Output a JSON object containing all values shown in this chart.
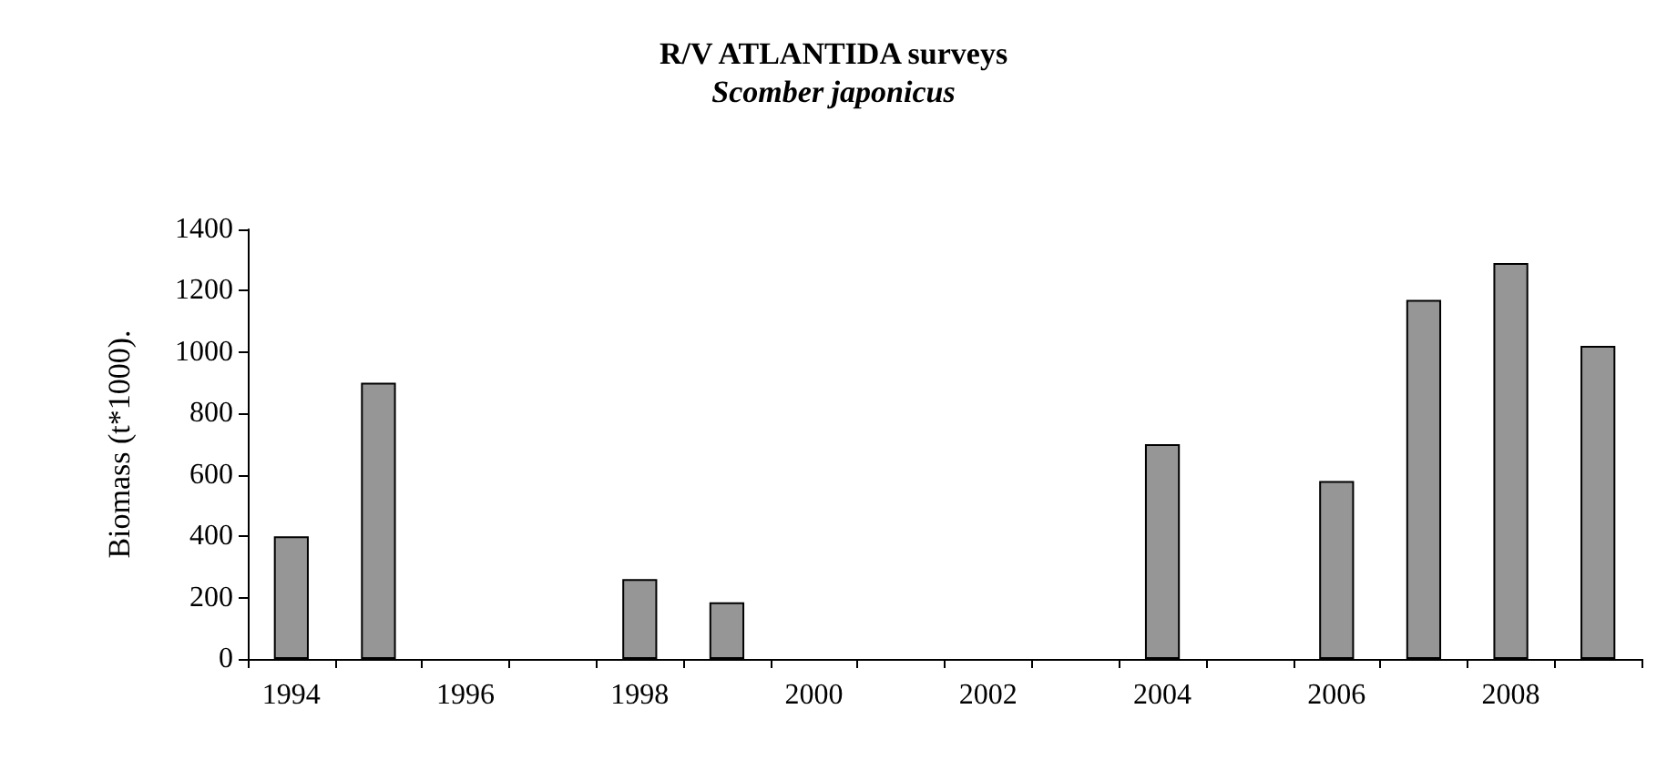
{
  "chart_data": {
    "type": "bar",
    "title": "R/V ATLANTIDA surveys",
    "subtitle": "Scomber japonicus",
    "ylabel": "Biomass (t*1000).",
    "categories": [
      "1994",
      null,
      "1996",
      null,
      "1998",
      null,
      "2000",
      null,
      "2002",
      null,
      "2004",
      null,
      "2006",
      null,
      "2008",
      null
    ],
    "values": [
      400,
      900,
      null,
      null,
      260,
      185,
      null,
      null,
      null,
      null,
      700,
      null,
      580,
      1170,
      1290,
      1020
    ],
    "color": "#969696",
    "ylim": [
      0,
      1400
    ],
    "yticks": [
      0,
      200,
      400,
      600,
      800,
      1000,
      1200,
      1400
    ],
    "grid": false
  }
}
